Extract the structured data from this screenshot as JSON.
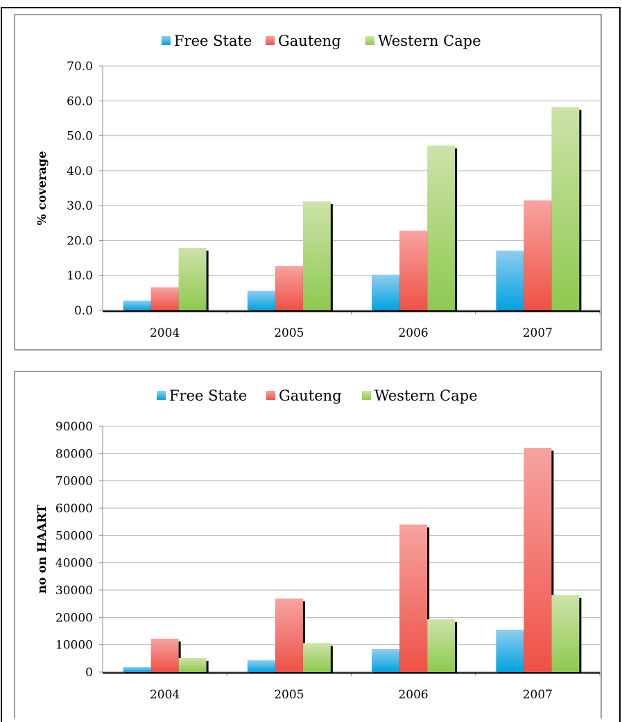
{
  "colors": {
    "free_state": [
      "#8fcdf0",
      "#00a2de"
    ],
    "gauteng": [
      "#f7a3a0",
      "#ee5146"
    ],
    "western_cape": [
      "#cde3a9",
      "#8ec94f"
    ],
    "shadow": "#000000",
    "grid": "#b7b7b7",
    "panel_border": "#7f7f7f"
  },
  "chart_data": [
    {
      "type": "bar",
      "categories": [
        "2004",
        "2005",
        "2006",
        "2007"
      ],
      "series": [
        {
          "name": "Free State",
          "values": [
            2.8,
            5.6,
            10.2,
            17.1
          ]
        },
        {
          "name": "Gauteng",
          "values": [
            6.6,
            12.7,
            22.8,
            31.5
          ]
        },
        {
          "name": "Western Cape",
          "values": [
            17.9,
            31.2,
            47.2,
            58.2
          ]
        }
      ],
      "yticks": [
        "0.0",
        "10.0",
        "20.0",
        "30.0",
        "40.0",
        "50.0",
        "60.0",
        "70.0"
      ],
      "ylim": [
        0,
        70
      ],
      "ylabel": "% coverage",
      "xlabel": "",
      "grid": true,
      "legend": "top-center"
    },
    {
      "type": "bar",
      "categories": [
        "2004",
        "2005",
        "2006",
        "2007"
      ],
      "series": [
        {
          "name": "Free State",
          "values": [
            1800,
            4300,
            8400,
            15500
          ]
        },
        {
          "name": "Gauteng",
          "values": [
            12200,
            26900,
            54000,
            82100
          ]
        },
        {
          "name": "Western Cape",
          "values": [
            5100,
            10600,
            19300,
            28200
          ]
        }
      ],
      "yticks": [
        "0",
        "10000",
        "20000",
        "30000",
        "40000",
        "50000",
        "60000",
        "70000",
        "80000",
        "90000"
      ],
      "ylim": [
        0,
        90000
      ],
      "ylabel": "no on HAART",
      "xlabel": "",
      "grid": true,
      "legend": "top-center"
    }
  ]
}
